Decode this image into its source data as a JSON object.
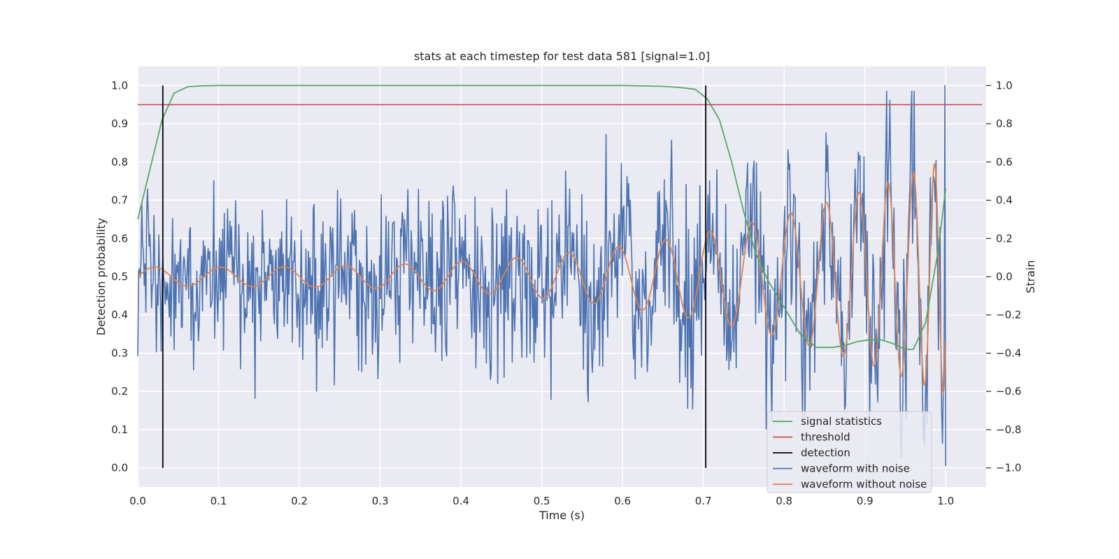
{
  "chart_data": {
    "type": "line",
    "title": "stats at each timestep for test data 581 [signal=1.0]",
    "xlabel": "Time (s)",
    "ylabel_left": "Detection probability",
    "ylabel_right": "Strain",
    "xlim": [
      0.0,
      1.05
    ],
    "ylim_left": [
      -0.05,
      1.05
    ],
    "ylim_right": [
      -1.1,
      1.1
    ],
    "x_ticks": [
      0.0,
      0.1,
      0.2,
      0.3,
      0.4,
      0.5,
      0.6,
      0.7,
      0.8,
      0.9,
      1.0
    ],
    "x_tick_labels": [
      "0.0",
      "0.1",
      "0.2",
      "0.3",
      "0.4",
      "0.5",
      "0.6",
      "0.7",
      "0.8",
      "0.9",
      "1.0"
    ],
    "y_left_ticks": [
      0.0,
      0.1,
      0.2,
      0.3,
      0.4,
      0.5,
      0.6,
      0.7,
      0.8,
      0.9,
      1.0
    ],
    "y_left_tick_labels": [
      "0.0",
      "0.1",
      "0.2",
      "0.3",
      "0.4",
      "0.5",
      "0.6",
      "0.7",
      "0.8",
      "0.9",
      "1.0"
    ],
    "y_right_ticks": [
      -1.0,
      -0.8,
      -0.6,
      -0.4,
      -0.2,
      0.0,
      0.2,
      0.4,
      0.6,
      0.8,
      1.0
    ],
    "y_right_tick_labels": [
      "−1.0",
      "−0.8",
      "−0.6",
      "−0.4",
      "−0.2",
      "0.0",
      "0.2",
      "0.4",
      "0.6",
      "0.8",
      "1.0"
    ],
    "grid": true,
    "legend_position": "lower-right",
    "colors": {
      "plot_background": "#eaeaf2",
      "grid": "#ffffff",
      "signal_statistics": "#55a868",
      "threshold": "#c44e52",
      "detection": "#000000",
      "waveform_with_noise": "#4c72b0",
      "waveform_without_noise": "#dd8452"
    },
    "series": [
      {
        "name": "signal statistics",
        "axis": "left",
        "x": [
          0.0,
          0.015,
          0.03,
          0.045,
          0.062,
          0.08,
          0.1,
          0.15,
          0.2,
          0.3,
          0.4,
          0.5,
          0.6,
          0.65,
          0.67,
          0.69,
          0.705,
          0.72,
          0.735,
          0.75,
          0.765,
          0.78,
          0.8,
          0.82,
          0.84,
          0.86,
          0.875,
          0.89,
          0.905,
          0.92,
          0.935,
          0.95,
          0.96,
          0.975,
          0.99,
          1.0
        ],
        "y": [
          0.65,
          0.78,
          0.91,
          0.98,
          0.997,
          0.999,
          1.0,
          1.0,
          1.0,
          1.0,
          1.0,
          1.0,
          1.0,
          0.998,
          0.995,
          0.99,
          0.965,
          0.91,
          0.8,
          0.67,
          0.56,
          0.49,
          0.42,
          0.35,
          0.315,
          0.315,
          0.32,
          0.33,
          0.335,
          0.335,
          0.325,
          0.31,
          0.31,
          0.38,
          0.56,
          0.73
        ]
      },
      {
        "name": "threshold",
        "axis": "left",
        "x": [
          0.0,
          1.045
        ],
        "y": [
          0.95,
          0.95
        ]
      },
      {
        "name": "detection",
        "axis": "left",
        "segments": [
          {
            "x": 0.031,
            "y_from": 0.0,
            "y_to": 1.0
          },
          {
            "x": 0.703,
            "y_from": 0.0,
            "y_to": 1.0
          }
        ]
      },
      {
        "name": "waveform with noise",
        "axis": "right",
        "description_values": "noisy strain time series, 1000 samples spanning 0.0 to 1.0 s, amplitude roughly between -0.95 and 1.0",
        "x_range": [
          0.0,
          1.0
        ],
        "y_range": [
          -0.99,
          1.0
        ],
        "samples": 1000,
        "noise_std": 0.22
      },
      {
        "name": "waveform without noise",
        "axis": "right",
        "description_values": "chirp signal with frequency increasing from ~12 Hz to ~60 Hz and amplitude growing from ~0.05 to ~0.65 near t=1.0",
        "x_range": [
          0.0,
          1.0
        ],
        "start_frequency_hz": 12,
        "amplitude_start": 0.05,
        "amplitude_end": 0.65
      }
    ],
    "legend": [
      "signal statistics",
      "threshold",
      "detection",
      "waveform with noise",
      "waveform without noise"
    ]
  }
}
